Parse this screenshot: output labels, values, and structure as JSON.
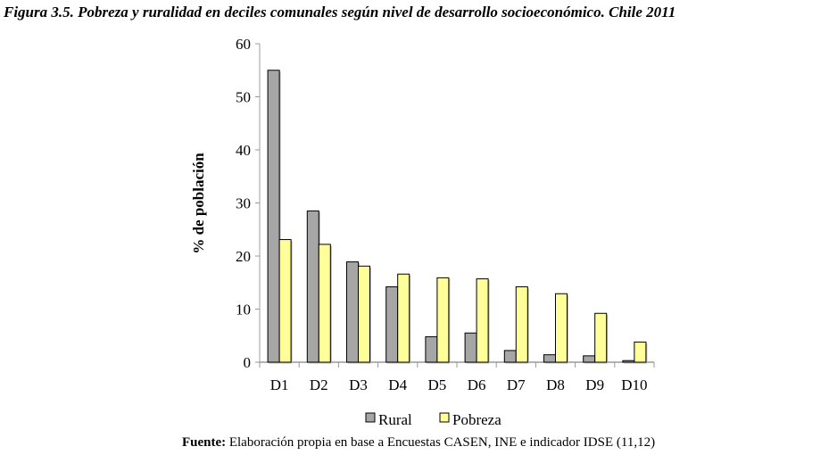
{
  "chart_data": {
    "type": "bar",
    "title": "Figura 3.5. Pobreza y ruralidad en deciles comunales según nivel de desarrollo socioeconómico.  Chile 2011",
    "xlabel": "",
    "ylabel": "% de población",
    "ylim": [
      0,
      60
    ],
    "yticks": [
      "0",
      "10",
      "20",
      "30",
      "40",
      "50",
      "60"
    ],
    "categories": [
      "D1",
      "D2",
      "D3",
      "D4",
      "D5",
      "D6",
      "D7",
      "D8",
      "D9",
      "D10"
    ],
    "series": [
      {
        "name": "Rural",
        "color": "#a6a6a6",
        "values": [
          55.0,
          28.5,
          18.9,
          14.2,
          4.8,
          5.5,
          2.2,
          1.4,
          1.2,
          0.3
        ]
      },
      {
        "name": "Pobreza",
        "color": "#ffff99",
        "values": [
          23.1,
          22.2,
          18.1,
          16.6,
          15.9,
          15.7,
          14.2,
          12.9,
          9.2,
          3.8
        ]
      }
    ],
    "grid": false,
    "legend": "bottom"
  },
  "source": {
    "label": "Fuente:",
    "text": " Elaboración propia en base a Encuestas CASEN, INE e indicador IDSE (11,12)"
  }
}
